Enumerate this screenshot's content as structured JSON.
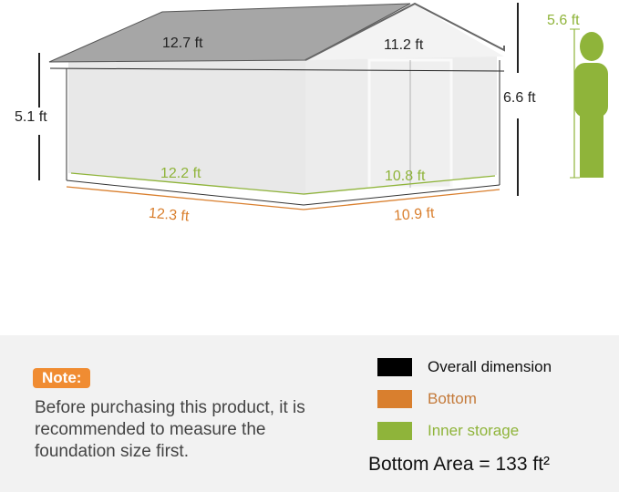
{
  "dimensions": {
    "roof_length": "12.7 ft",
    "roof_width": "11.2 ft",
    "wall_height": "5.1 ft",
    "peak_height": "6.6 ft",
    "inner_length": "12.2 ft",
    "inner_width": "10.8 ft",
    "bottom_length": "12.3 ft",
    "bottom_width": "10.9 ft",
    "person_height": "5.6 ft"
  },
  "note": {
    "badge": "Note:",
    "text": "Before purchasing this product, it is recommended to measure the foundation size first."
  },
  "legend": [
    {
      "label": "Overall dimension",
      "color": "#000000"
    },
    {
      "label": "Bottom",
      "color": "#d97f2e"
    },
    {
      "label": "Inner storage",
      "color": "#8fb43a"
    }
  ],
  "bottom_area": "Bottom Area = 133 ft²"
}
